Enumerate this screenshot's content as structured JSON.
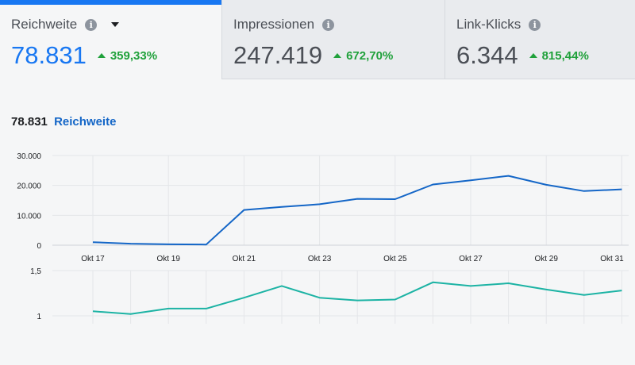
{
  "tabs": [
    {
      "title": "Reichweite",
      "value": "78.831",
      "change": "359,33%",
      "active": true,
      "has_dropdown": true
    },
    {
      "title": "Impressionen",
      "value": "247.419",
      "change": "672,70%",
      "active": false,
      "has_dropdown": false
    },
    {
      "title": "Link-Klicks",
      "value": "6.344",
      "change": "815,44%",
      "active": false,
      "has_dropdown": false
    }
  ],
  "summary": {
    "value": "78.831",
    "label": "Reichweite"
  },
  "colors": {
    "accent": "#1877f2",
    "reach_line": "#1466c7",
    "secondary_line": "#1cb3a4",
    "positive": "#20a13b"
  },
  "chart_data": [
    {
      "type": "line",
      "x": [
        "Okt 17",
        "Okt 18",
        "Okt 19",
        "Okt 20",
        "Okt 21",
        "Okt 22",
        "Okt 23",
        "Okt 24",
        "Okt 25",
        "Okt 26",
        "Okt 27",
        "Okt 28",
        "Okt 29",
        "Okt 30",
        "Okt 31"
      ],
      "series": [
        {
          "values": [
            1000,
            500,
            300,
            200,
            11800,
            12800,
            13700,
            15500,
            15400,
            20300,
            21700,
            23200,
            20200,
            18100,
            18700
          ]
        }
      ],
      "ylim": [
        0,
        30000
      ],
      "yticks": [
        "0",
        "10.000",
        "20.000",
        "30.000"
      ],
      "xtick_labels": [
        "Okt 17",
        "Okt 19",
        "Okt 21",
        "Okt 23",
        "Okt 25",
        "Okt 27",
        "Okt 29",
        "Okt 31"
      ],
      "grid": true
    },
    {
      "type": "line",
      "x": [
        "Okt 17",
        "Okt 18",
        "Okt 19",
        "Okt 20",
        "Okt 21",
        "Okt 22",
        "Okt 23",
        "Okt 24",
        "Okt 25",
        "Okt 26",
        "Okt 27",
        "Okt 28",
        "Okt 29",
        "Okt 30",
        "Okt 31"
      ],
      "series": [
        {
          "values": [
            1.05,
            1.02,
            1.08,
            1.08,
            1.2,
            1.33,
            1.2,
            1.17,
            1.18,
            1.37,
            1.33,
            1.36,
            1.29,
            1.23,
            1.28
          ]
        }
      ],
      "ylim": [
        1,
        1.5
      ],
      "yticks": [
        "1",
        "1,5"
      ],
      "grid": true
    }
  ]
}
